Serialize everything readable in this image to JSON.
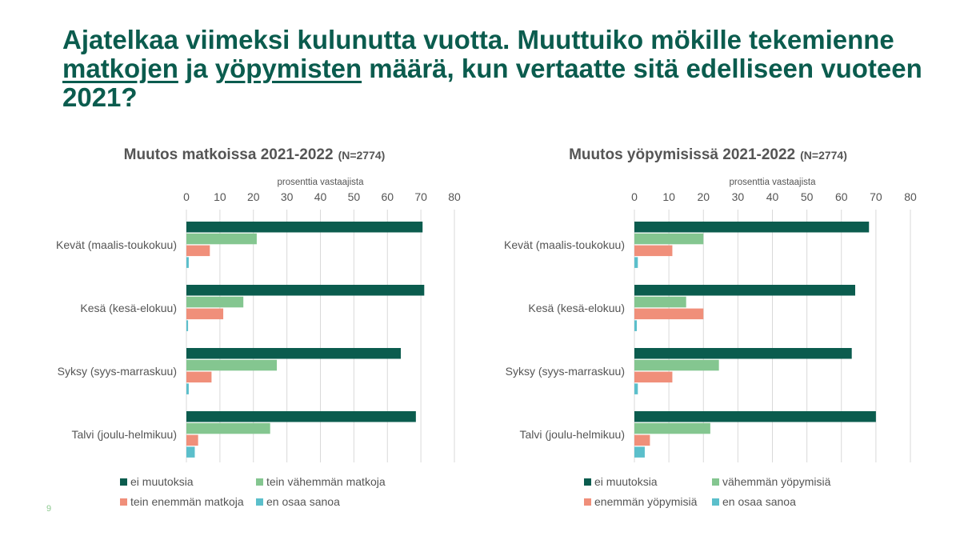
{
  "slide": {
    "title_parts": [
      {
        "text": "Ajatelkaa viimeksi kulunutta vuotta. Muuttuiko mökille tekemienne ",
        "underline": false
      },
      {
        "text": "matkojen",
        "underline": true
      },
      {
        "text": " ja ",
        "underline": false
      },
      {
        "text": "yöpymisten",
        "underline": true
      },
      {
        "text": " määrä, kun vertaatte sitä edelliseen vuoteen 2021?",
        "underline": false
      }
    ],
    "page_number": "9"
  },
  "chart_data": [
    {
      "type": "bar",
      "orientation": "horizontal",
      "title": "Muutos matkoissa 2021-2022",
      "title_note": "(N=2774)",
      "xlabel": "prosenttia vastaajista",
      "xlim": [
        0,
        80
      ],
      "xticks": [
        0,
        10,
        20,
        30,
        40,
        50,
        60,
        70,
        80
      ],
      "categories": [
        "Kevät (maalis-toukokuu)",
        "Kesä (kesä-elokuu)",
        "Syksy (syys-marraskuu)",
        "Talvi (joulu-helmikuu)"
      ],
      "series": [
        {
          "name": "ei muutoksia",
          "color": "#0b5c4e",
          "values": [
            70.5,
            71,
            64,
            68.5
          ]
        },
        {
          "name": "tein vähemmän matkoja",
          "color": "#84c690",
          "values": [
            21,
            17,
            27,
            25
          ]
        },
        {
          "name": "tein enemmän matkoja",
          "color": "#f08f7a",
          "values": [
            7,
            11,
            7.5,
            3.5
          ]
        },
        {
          "name": "en osaa sanoa",
          "color": "#5bbfcb",
          "values": [
            0.7,
            0.5,
            0.7,
            2.5
          ]
        }
      ],
      "grid": "vertical",
      "legend_position": "bottom"
    },
    {
      "type": "bar",
      "orientation": "horizontal",
      "title": "Muutos yöpymisissä 2021-2022",
      "title_note": "(N=2774)",
      "xlabel": "prosenttia vastaajista",
      "xlim": [
        0,
        80
      ],
      "xticks": [
        0,
        10,
        20,
        30,
        40,
        50,
        60,
        70,
        80
      ],
      "categories": [
        "Kevät (maalis-toukokuu)",
        "Kesä (kesä-elokuu)",
        "Syksy (syys-marraskuu)",
        "Talvi (joulu-helmikuu)"
      ],
      "series": [
        {
          "name": "ei muutoksia",
          "color": "#0b5c4e",
          "values": [
            68,
            64,
            63,
            70
          ]
        },
        {
          "name": "vähemmän yöpymisiä",
          "color": "#84c690",
          "values": [
            20,
            15,
            24.5,
            22
          ]
        },
        {
          "name": "enemmän yöpymisiä",
          "color": "#f08f7a",
          "values": [
            11,
            20,
            11,
            4.5
          ]
        },
        {
          "name": "en osaa sanoa",
          "color": "#5bbfcb",
          "values": [
            1,
            0.7,
            1,
            3
          ]
        }
      ],
      "grid": "vertical",
      "legend_position": "bottom"
    }
  ]
}
